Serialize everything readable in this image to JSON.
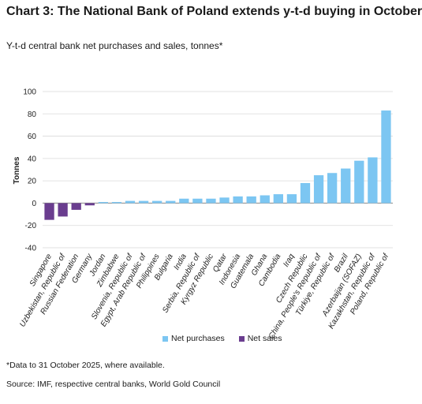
{
  "header": {
    "title": "Chart 3: The National Bank of Poland extends y-t-d buying in October",
    "subtitle": "Y-t-d central bank net purchases and sales, tonnes*"
  },
  "footer": {
    "note": "*Data to 31 October 2025, where available.",
    "source": "Source: IMF, respective central banks, World Gold Council"
  },
  "colors": {
    "purchases": "#7cc6f2",
    "sales": "#6a3d8f",
    "grid": "#d9d9d9",
    "axis": "#8a8a8a"
  },
  "chart_data": {
    "type": "bar",
    "ylabel": "Tonnes",
    "ylim": [
      -40,
      100
    ],
    "yticks": [
      100,
      80,
      60,
      40,
      20,
      0,
      -20,
      -40
    ],
    "grid": true,
    "legend_position": "bottom",
    "categories": [
      "Singapore",
      "Uzbekistan, Republic of",
      "Russian Federation",
      "Germany",
      "Jordan",
      "Zimbabwe",
      "Slovenia, Republic of",
      "Egypt, Arab Republic of",
      "Philippines",
      "Bulgaria",
      "India",
      "Serbia, Republic of",
      "Kyrgyz Republic",
      "Qatar",
      "Indonesia",
      "Guatemala",
      "Ghana",
      "Cambodia",
      "Iraq",
      "Czech Republic",
      "China, People's Republic of",
      "Türkiye, Republic of",
      "Brazil",
      "Azerbaijan (SOFAZ)",
      "Kazakhstan, Republic of",
      "Poland, Republic of"
    ],
    "values": [
      -15,
      -12,
      -6,
      -2,
      1,
      1,
      2,
      2,
      2,
      2,
      4,
      4,
      4,
      5,
      6,
      6,
      7,
      8,
      8,
      18,
      25,
      27,
      31,
      38,
      41,
      83
    ],
    "legend": [
      "Net purchases",
      "Net sales"
    ]
  }
}
